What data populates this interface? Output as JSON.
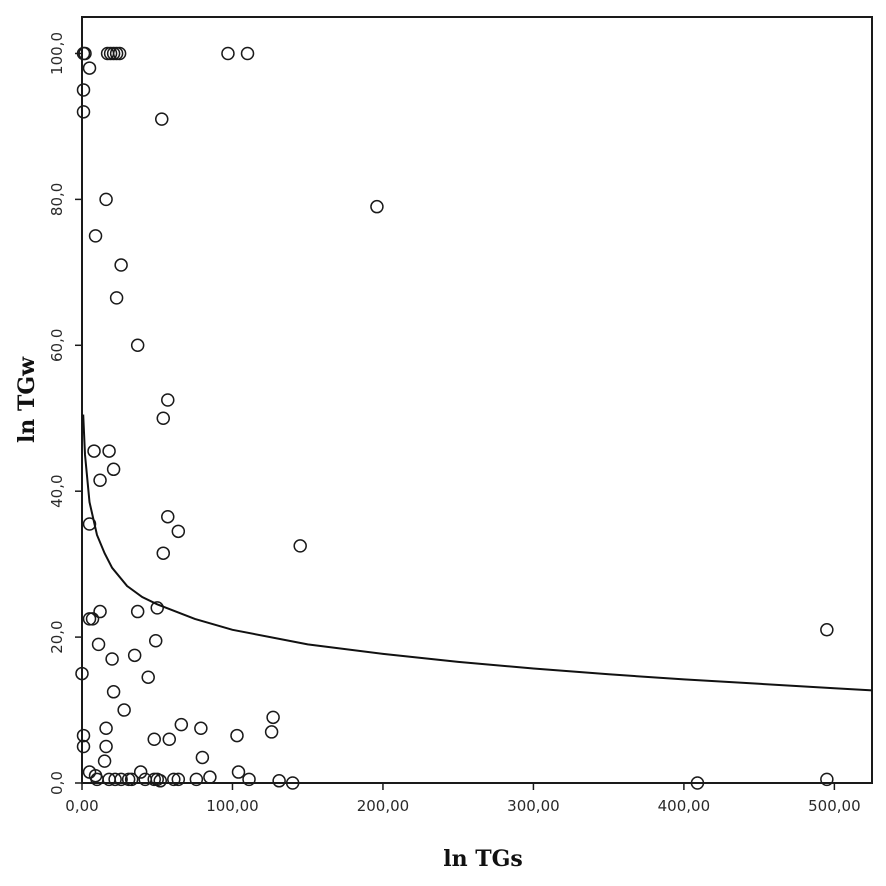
{
  "chart_data": {
    "type": "scatter",
    "xlabel": "ln TGs",
    "ylabel": "ln TGw",
    "xlim": [
      0,
      525
    ],
    "ylim": [
      0,
      105
    ],
    "x_ticks": [
      0,
      100,
      200,
      300,
      400,
      500
    ],
    "x_tick_labels": [
      "0,00",
      "100,00",
      "200,00",
      "300,00",
      "400,00",
      "500,00"
    ],
    "y_ticks": [
      0,
      20,
      40,
      60,
      80,
      100
    ],
    "y_tick_labels": [
      "0,0",
      "20,0",
      "40,0",
      "60,0",
      "80,0",
      "100,0"
    ],
    "grid": false,
    "legend": "none",
    "points": [
      {
        "x": 1,
        "y": 100
      },
      {
        "x": 2,
        "y": 100
      },
      {
        "x": 17,
        "y": 100
      },
      {
        "x": 19,
        "y": 100
      },
      {
        "x": 21,
        "y": 100
      },
      {
        "x": 23,
        "y": 100
      },
      {
        "x": 25,
        "y": 100
      },
      {
        "x": 97,
        "y": 100
      },
      {
        "x": 110,
        "y": 100
      },
      {
        "x": 5,
        "y": 98
      },
      {
        "x": 1,
        "y": 95
      },
      {
        "x": 1,
        "y": 92
      },
      {
        "x": 53,
        "y": 91
      },
      {
        "x": 16,
        "y": 80
      },
      {
        "x": 196,
        "y": 79
      },
      {
        "x": 9,
        "y": 75
      },
      {
        "x": 26,
        "y": 71
      },
      {
        "x": 23,
        "y": 66.5
      },
      {
        "x": 37,
        "y": 60
      },
      {
        "x": 57,
        "y": 52.5
      },
      {
        "x": 54,
        "y": 50
      },
      {
        "x": 8,
        "y": 45.5
      },
      {
        "x": 18,
        "y": 45.5
      },
      {
        "x": 21,
        "y": 43
      },
      {
        "x": 12,
        "y": 41.5
      },
      {
        "x": 57,
        "y": 36.5
      },
      {
        "x": 64,
        "y": 34.5
      },
      {
        "x": 145,
        "y": 32.5
      },
      {
        "x": 5,
        "y": 35.5
      },
      {
        "x": 54,
        "y": 31.5
      },
      {
        "x": 37,
        "y": 23.5
      },
      {
        "x": 50,
        "y": 24
      },
      {
        "x": 12,
        "y": 23.5
      },
      {
        "x": 5,
        "y": 22.5
      },
      {
        "x": 7,
        "y": 22.5
      },
      {
        "x": 49,
        "y": 19.5
      },
      {
        "x": 11,
        "y": 19
      },
      {
        "x": 20,
        "y": 17
      },
      {
        "x": 0,
        "y": 15
      },
      {
        "x": 44,
        "y": 14.5
      },
      {
        "x": 35,
        "y": 17.5
      },
      {
        "x": 21,
        "y": 12.5
      },
      {
        "x": 28,
        "y": 10
      },
      {
        "x": 127,
        "y": 9
      },
      {
        "x": 66,
        "y": 8
      },
      {
        "x": 79,
        "y": 7.5
      },
      {
        "x": 16,
        "y": 7.5
      },
      {
        "x": 48,
        "y": 6
      },
      {
        "x": 58,
        "y": 6
      },
      {
        "x": 103,
        "y": 6.5
      },
      {
        "x": 126,
        "y": 7
      },
      {
        "x": 1,
        "y": 6.5
      },
      {
        "x": 1,
        "y": 5
      },
      {
        "x": 16,
        "y": 5
      },
      {
        "x": 80,
        "y": 3.5
      },
      {
        "x": 15,
        "y": 3
      },
      {
        "x": 5,
        "y": 1.5
      },
      {
        "x": 9,
        "y": 1
      },
      {
        "x": 39,
        "y": 1.5
      },
      {
        "x": 104,
        "y": 1.5
      },
      {
        "x": 10,
        "y": 0.5
      },
      {
        "x": 18,
        "y": 0.5
      },
      {
        "x": 22,
        "y": 0.5
      },
      {
        "x": 26,
        "y": 0.5
      },
      {
        "x": 31,
        "y": 0.5
      },
      {
        "x": 33,
        "y": 0.5
      },
      {
        "x": 42,
        "y": 0.5
      },
      {
        "x": 48,
        "y": 0.5
      },
      {
        "x": 50,
        "y": 0.5
      },
      {
        "x": 52,
        "y": 0.3
      },
      {
        "x": 61,
        "y": 0.5
      },
      {
        "x": 64,
        "y": 0.5
      },
      {
        "x": 76,
        "y": 0.5
      },
      {
        "x": 85,
        "y": 0.8
      },
      {
        "x": 111,
        "y": 0.5
      },
      {
        "x": 131,
        "y": 0.3
      },
      {
        "x": 140,
        "y": 0
      },
      {
        "x": 409,
        "y": 0
      },
      {
        "x": 495,
        "y": 0.5
      },
      {
        "x": 495,
        "y": 21
      }
    ],
    "fit_curve": [
      {
        "x": 0.8,
        "y": 50.5
      },
      {
        "x": 2,
        "y": 45
      },
      {
        "x": 5,
        "y": 38.5
      },
      {
        "x": 10,
        "y": 34
      },
      {
        "x": 15,
        "y": 31.5
      },
      {
        "x": 20,
        "y": 29.5
      },
      {
        "x": 30,
        "y": 27
      },
      {
        "x": 40,
        "y": 25.5
      },
      {
        "x": 50,
        "y": 24.5
      },
      {
        "x": 75,
        "y": 22.5
      },
      {
        "x": 100,
        "y": 21
      },
      {
        "x": 150,
        "y": 19
      },
      {
        "x": 200,
        "y": 17.7
      },
      {
        "x": 250,
        "y": 16.6
      },
      {
        "x": 300,
        "y": 15.7
      },
      {
        "x": 350,
        "y": 14.9
      },
      {
        "x": 400,
        "y": 14.2
      },
      {
        "x": 450,
        "y": 13.6
      },
      {
        "x": 500,
        "y": 13
      },
      {
        "x": 525,
        "y": 12.7
      }
    ]
  }
}
